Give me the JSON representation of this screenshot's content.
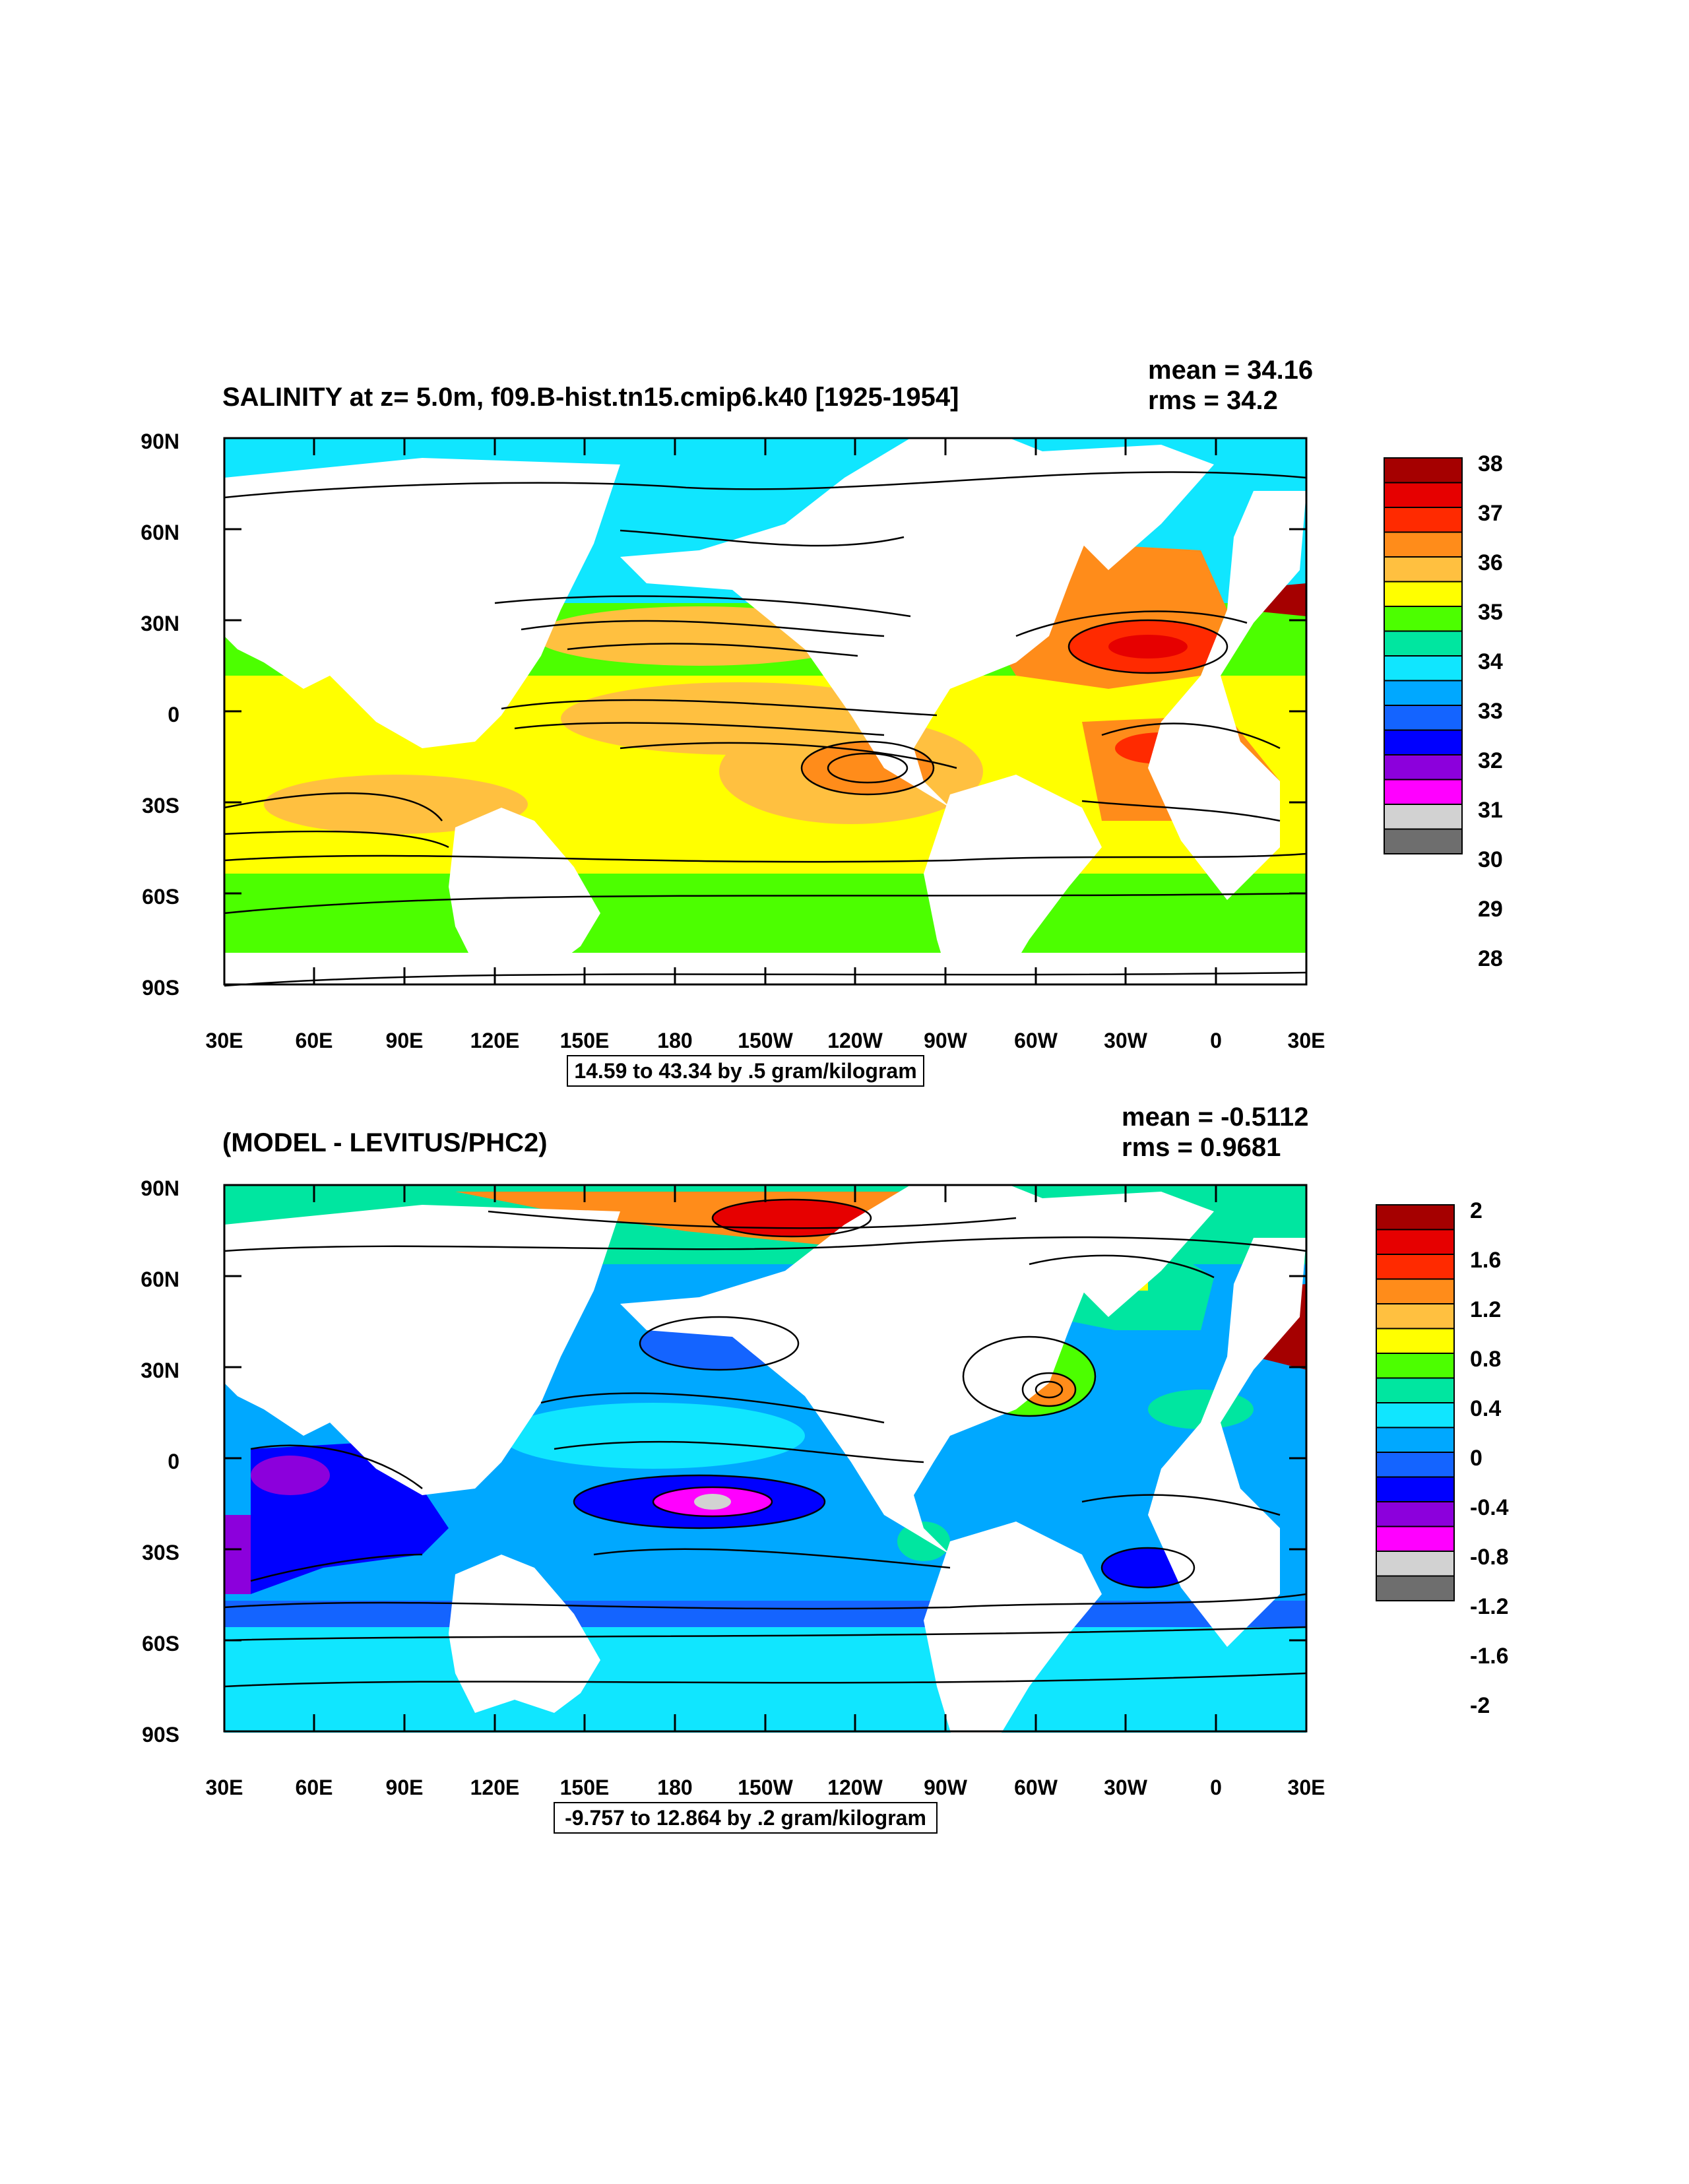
{
  "top": {
    "title": "SALINITY at z=   5.0m, f09.B-hist.tn15.cmip6.k40 [1925-1954]",
    "mean": "mean = 34.16",
    "rms": "rms = 34.2",
    "range": "14.59 to 43.34 by .5 gram/kilogram",
    "legend": {
      "labels": [
        "38",
        "37",
        "36",
        "35",
        "34",
        "33",
        "32",
        "31",
        "30",
        "29",
        "28"
      ],
      "colors": [
        "#a50000",
        "#e60000",
        "#ff2a00",
        "#ff8c1a",
        "#ffc040",
        "#ffff00",
        "#4cff00",
        "#00e6a0",
        "#10e6ff",
        "#00a8ff",
        "#1464ff",
        "#0000ff",
        "#8c00dc",
        "#ff00ff",
        "#d2d2d2",
        "#6e6e6e"
      ]
    }
  },
  "bottom": {
    "title": "(MODEL - LEVITUS/PHC2)",
    "mean": "mean = -0.5112",
    "rms": "rms = 0.9681",
    "range": "-9.757 to 12.864 by .2 gram/kilogram",
    "legend": {
      "labels": [
        "2",
        "1.6",
        "1.2",
        "0.8",
        "0.4",
        "0",
        "-0.4",
        "-0.8",
        "-1.2",
        "-1.6",
        "-2"
      ],
      "colors": [
        "#a50000",
        "#e60000",
        "#ff2a00",
        "#ff8c1a",
        "#ffc040",
        "#ffff00",
        "#4cff00",
        "#00e6a0",
        "#10e6ff",
        "#00a8ff",
        "#1464ff",
        "#0000ff",
        "#8c00dc",
        "#ff00ff",
        "#d2d2d2",
        "#6e6e6e"
      ]
    }
  },
  "axes": {
    "lat_labels": [
      "90N",
      "60N",
      "30N",
      "0",
      "30S",
      "60S",
      "90S"
    ],
    "lon_labels": [
      "30E",
      "60E",
      "90E",
      "120E",
      "150E",
      "180",
      "150W",
      "120W",
      "90W",
      "60W",
      "30W",
      "0",
      "30E"
    ]
  }
}
